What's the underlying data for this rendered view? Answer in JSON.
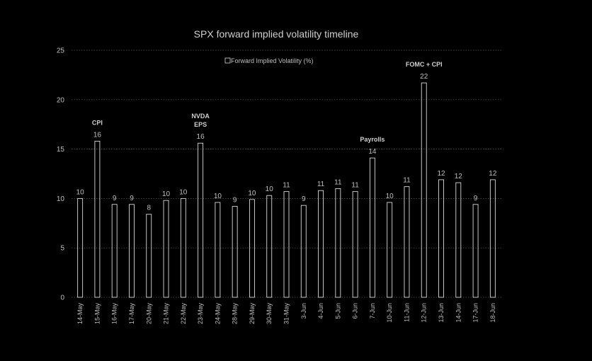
{
  "chart_data": {
    "type": "bar",
    "title": "SPX forward implied volatility timeline",
    "legend": {
      "label": "Forward Implied Volatility (%)",
      "placement": "top-center"
    },
    "xlabel": "",
    "ylabel": "",
    "ylim": [
      0,
      25
    ],
    "yticks": [
      "0",
      "5",
      "10",
      "15",
      "20",
      "25"
    ],
    "grid": true,
    "categories": [
      "14-May",
      "15-May",
      "16-May",
      "17-May",
      "20-May",
      "21-May",
      "22-May",
      "23-May",
      "24-May",
      "28-May",
      "29-May",
      "30-May",
      "31-May",
      "3-Jun",
      "4-Jun",
      "5-Jun",
      "6-Jun",
      "7-Jun",
      "10-Jun",
      "11-Jun",
      "12-Jun",
      "13-Jun",
      "14-Jun",
      "17-Jun",
      "18-Jun"
    ],
    "series": [
      {
        "name": "Forward Implied Volatility (%)",
        "values": [
          10.0,
          15.8,
          9.4,
          9.4,
          8.4,
          9.8,
          10.0,
          15.6,
          9.6,
          9.2,
          9.9,
          10.3,
          10.7,
          9.3,
          10.8,
          11.0,
          10.7,
          14.1,
          9.6,
          11.2,
          21.7,
          11.9,
          11.6,
          9.4,
          11.9
        ],
        "labels": [
          "10",
          "16",
          "9",
          "9",
          "8",
          "10",
          "10",
          "16",
          "10",
          "9",
          "10",
          "10",
          "11",
          "9",
          "11",
          "11",
          "11",
          "14",
          "10",
          "11",
          "22",
          "12",
          "12",
          "9",
          "12"
        ]
      }
    ],
    "annotations": [
      {
        "category": "15-May",
        "lines": [
          "CPI"
        ]
      },
      {
        "category": "23-May",
        "lines": [
          "NVDA",
          "EPS"
        ]
      },
      {
        "category": "7-Jun",
        "lines": [
          "Payrolls"
        ]
      },
      {
        "category": "12-Jun",
        "lines": [
          "FOMC + CPI"
        ]
      }
    ],
    "colors": {
      "background": "#000000",
      "bar_stroke": "#d8d8d8",
      "text": "#bfbfbf",
      "grid": "#5a5a5a"
    }
  }
}
